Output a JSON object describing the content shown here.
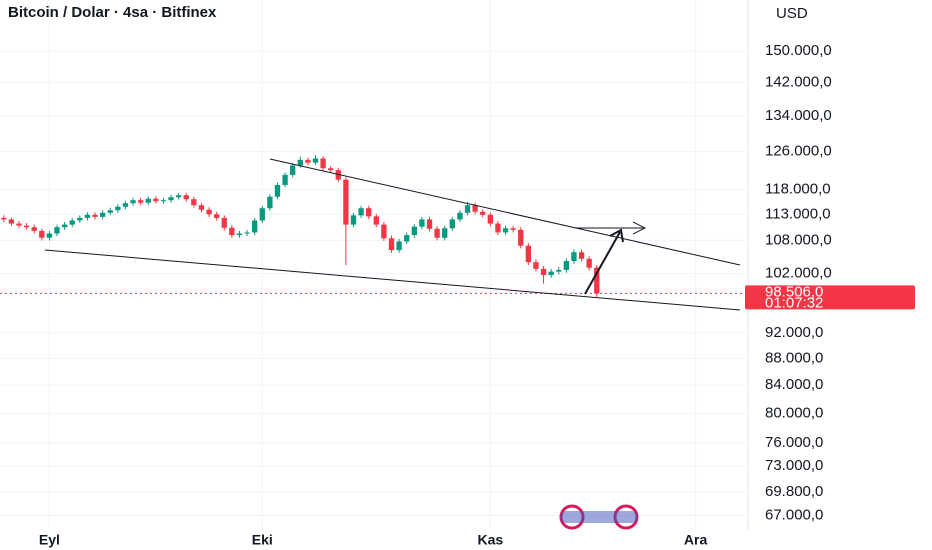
{
  "chart_data": {
    "type": "candlestick",
    "title": "Bitcoin / Dolar · 4sa · Bitfinex",
    "currency": "USD",
    "log_scale": true,
    "grid": true,
    "up_color": "#089981",
    "down_color": "#f23645",
    "ylim": [
      65340,
      163900
    ],
    "yticks": [
      {
        "value": 150000,
        "label": "150.000,0"
      },
      {
        "value": 142000,
        "label": "142.000,0"
      },
      {
        "value": 134000,
        "label": "134.000,0"
      },
      {
        "value": 126000,
        "label": "126.000,0"
      },
      {
        "value": 118000,
        "label": "118.000,0"
      },
      {
        "value": 113000,
        "label": "113.000,0"
      },
      {
        "value": 108000,
        "label": "108.000,0"
      },
      {
        "value": 102000,
        "label": "102.000,0"
      },
      {
        "value": 92000,
        "label": "92.000,0"
      },
      {
        "value": 88000,
        "label": "88.000,0"
      },
      {
        "value": 84000,
        "label": "84.000,0"
      },
      {
        "value": 80000,
        "label": "80.000,0"
      },
      {
        "value": 76000,
        "label": "76.000,0"
      },
      {
        "value": 73000,
        "label": "73.000,0"
      },
      {
        "value": 69800,
        "label": "69.800,0"
      },
      {
        "value": 67000,
        "label": "67.000,0"
      }
    ],
    "last_price": {
      "value": 98506,
      "label": "98.506,0"
    },
    "countdown": "01:07:32",
    "categories": [
      null,
      null,
      null,
      null,
      null,
      null,
      "Eyl",
      null,
      null,
      null,
      null,
      null,
      null,
      null,
      null,
      null,
      null,
      null,
      null,
      null,
      null,
      null,
      null,
      null,
      null,
      null,
      null,
      null,
      null,
      null,
      null,
      null,
      null,
      null,
      "Eki",
      null,
      null,
      null,
      null,
      null,
      null,
      null,
      null,
      null,
      null,
      null,
      null,
      null,
      null,
      null,
      null,
      null,
      null,
      null,
      null,
      null,
      null,
      null,
      null,
      null,
      null,
      null,
      null,
      null,
      "Kas",
      null,
      null,
      null,
      null,
      null,
      null,
      null,
      null,
      null,
      null,
      null,
      null,
      null,
      null,
      null,
      null,
      null,
      null,
      null,
      null,
      null,
      null,
      null,
      null,
      null,
      null,
      "Ara",
      null,
      null,
      null,
      null,
      null,
      null
    ],
    "candles": [
      [
        112300,
        112800,
        111500,
        112000
      ],
      [
        112000,
        112400,
        110800,
        111200
      ],
      [
        111200,
        111700,
        110300,
        110800
      ],
      [
        110800,
        111300,
        110000,
        110500
      ],
      [
        110500,
        111000,
        109300,
        109800
      ],
      [
        109800,
        110200,
        108000,
        108500
      ],
      [
        108500,
        109800,
        108000,
        109300
      ],
      [
        109300,
        111000,
        108800,
        110500
      ],
      [
        110500,
        111500,
        110000,
        111000
      ],
      [
        111000,
        112300,
        110500,
        111800
      ],
      [
        111800,
        112800,
        111300,
        112300
      ],
      [
        112300,
        113400,
        111800,
        112900
      ],
      [
        112900,
        113400,
        112000,
        112500
      ],
      [
        112500,
        113800,
        112000,
        113300
      ],
      [
        113300,
        114300,
        112800,
        113800
      ],
      [
        113800,
        115000,
        113300,
        114500
      ],
      [
        114500,
        115700,
        114000,
        115200
      ],
      [
        115200,
        116300,
        114700,
        115800
      ],
      [
        115800,
        116300,
        114800,
        115300
      ],
      [
        115300,
        116600,
        114800,
        116100
      ],
      [
        116100,
        116600,
        115100,
        115600
      ],
      [
        115600,
        116300,
        115100,
        115800
      ],
      [
        115800,
        116900,
        115300,
        116400
      ],
      [
        116400,
        117300,
        115900,
        116800
      ],
      [
        116800,
        117300,
        115500,
        116000
      ],
      [
        116000,
        116500,
        114300,
        114800
      ],
      [
        114800,
        115300,
        113400,
        113900
      ],
      [
        113900,
        114400,
        112500,
        113000
      ],
      [
        113000,
        113500,
        111800,
        112300
      ],
      [
        112300,
        112800,
        109900,
        110400
      ],
      [
        110400,
        110900,
        108500,
        109000
      ],
      [
        109000,
        109800,
        108500,
        109300
      ],
      [
        109300,
        110000,
        108800,
        109500
      ],
      [
        109500,
        112300,
        109000,
        111800
      ],
      [
        111800,
        114700,
        111300,
        114200
      ],
      [
        114200,
        117000,
        113700,
        116500
      ],
      [
        116500,
        119400,
        116000,
        118900
      ],
      [
        118900,
        121500,
        118400,
        121000
      ],
      [
        121000,
        123500,
        120500,
        123000
      ],
      [
        123000,
        124900,
        122500,
        124200
      ],
      [
        124200,
        124700,
        123000,
        123600
      ],
      [
        123600,
        125200,
        123100,
        124500
      ],
      [
        124500,
        125000,
        121900,
        122400
      ],
      [
        122400,
        122900,
        121500,
        122000
      ],
      [
        122000,
        122500,
        119500,
        120000
      ],
      [
        120000,
        120500,
        103500,
        111000
      ],
      [
        111000,
        113300,
        110500,
        112800
      ],
      [
        112800,
        114700,
        112300,
        114200
      ],
      [
        114200,
        114700,
        112100,
        112600
      ],
      [
        112600,
        113100,
        110500,
        111000
      ],
      [
        111000,
        111500,
        107900,
        108400
      ],
      [
        108400,
        108900,
        105700,
        106200
      ],
      [
        106200,
        108300,
        105700,
        107800
      ],
      [
        107800,
        109500,
        107300,
        109000
      ],
      [
        109000,
        111100,
        108500,
        110600
      ],
      [
        110600,
        112500,
        110100,
        112000
      ],
      [
        112000,
        112500,
        109700,
        110200
      ],
      [
        110200,
        110700,
        108000,
        108500
      ],
      [
        108500,
        110800,
        108000,
        110300
      ],
      [
        110300,
        112500,
        109800,
        112000
      ],
      [
        112000,
        113800,
        111500,
        113300
      ],
      [
        113300,
        115500,
        112800,
        114800
      ],
      [
        114800,
        115300,
        113000,
        113500
      ],
      [
        113500,
        114000,
        112400,
        112900
      ],
      [
        112900,
        113400,
        110700,
        111200
      ],
      [
        111200,
        111700,
        109000,
        109500
      ],
      [
        109500,
        110800,
        109000,
        110300
      ],
      [
        110300,
        110800,
        109500,
        110000
      ],
      [
        110000,
        110500,
        106500,
        107000
      ],
      [
        107000,
        107500,
        103500,
        104000
      ],
      [
        104000,
        104500,
        102300,
        102800
      ],
      [
        102800,
        103300,
        100200,
        101700
      ],
      [
        101700,
        102800,
        101200,
        102300
      ],
      [
        102300,
        103100,
        101800,
        102600
      ],
      [
        102600,
        104700,
        102100,
        104200
      ],
      [
        104200,
        106300,
        103700,
        105800
      ],
      [
        105800,
        106300,
        104100,
        104600
      ],
      [
        104600,
        105100,
        102500,
        103000
      ],
      [
        103000,
        103500,
        97900,
        98506
      ],
      null,
      null,
      null,
      null,
      null,
      null,
      null,
      null,
      null,
      null,
      null,
      null,
      null,
      null,
      null,
      null,
      null,
      null,
      null,
      null,
      null,
      null,
      null
    ]
  }
}
